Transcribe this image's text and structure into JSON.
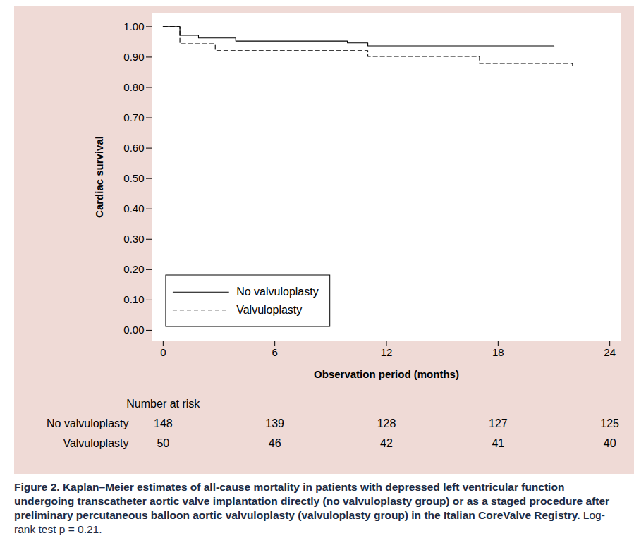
{
  "chart_data": {
    "type": "step",
    "x_label": "Observation period (months)",
    "y_label": "Cardiac survival",
    "xlim": [
      -0.6,
      24.6
    ],
    "ylim": [
      -0.035,
      1.045
    ],
    "xticks": [
      0,
      6,
      12,
      18,
      24
    ],
    "yticks": [
      {
        "value": 0,
        "label": "0.00"
      },
      {
        "value": 0.1,
        "label": "0.10"
      },
      {
        "value": 0.2,
        "label": "0.20"
      },
      {
        "value": 0.3,
        "label": "0.30"
      },
      {
        "value": 0.4,
        "label": "0.40"
      },
      {
        "value": 0.5,
        "label": "0.50"
      },
      {
        "value": 0.6,
        "label": "0.60"
      },
      {
        "value": 0.7,
        "label": "0.70"
      },
      {
        "value": 0.8,
        "label": "0.80"
      },
      {
        "value": 0.9,
        "label": "0.90"
      },
      {
        "value": 1,
        "label": "1.00"
      }
    ],
    "grid": false,
    "legend": "bottom-left",
    "series": [
      {
        "name": "No valvuloplasty",
        "color": "#000000",
        "line_style": "solid",
        "x": [
          0,
          0.9,
          1.9,
          3.9,
          9.9,
          11,
          21,
          21
        ],
        "values": [
          1.0,
          0.972,
          0.963,
          0.953,
          0.947,
          0.937,
          0.937,
          0.934
        ]
      },
      {
        "name": "Valvuloplasty",
        "color": "#000000",
        "line_style": "dashed",
        "x": [
          0,
          0.9,
          2.8,
          11,
          17,
          22,
          22
        ],
        "values": [
          1.0,
          0.944,
          0.921,
          0.902,
          0.879,
          0.879,
          0.864
        ]
      }
    ],
    "risk_table": {
      "title": "Number at risk",
      "times": [
        0,
        6,
        12,
        18,
        24
      ],
      "rows": [
        {
          "name": "No valvuloplasty",
          "values": [
            148,
            139,
            128,
            127,
            125
          ]
        },
        {
          "name": "Valvuloplasty",
          "values": [
            50,
            46,
            42,
            41,
            40
          ]
        }
      ]
    },
    "caption": "Figure 2. Kaplan–Meier estimates of all-cause mortality in patients with depressed left ventricular function undergoing transcatheter aortic valve implantation directly (no valvuloplasty group) or as a staged procedure after preliminary percutaneous balloon aortic valvuloplasty (valvuloplasty group) in the Italian CoreValve Registry.",
    "caption_note": "Log-rank test p = 0.21."
  }
}
